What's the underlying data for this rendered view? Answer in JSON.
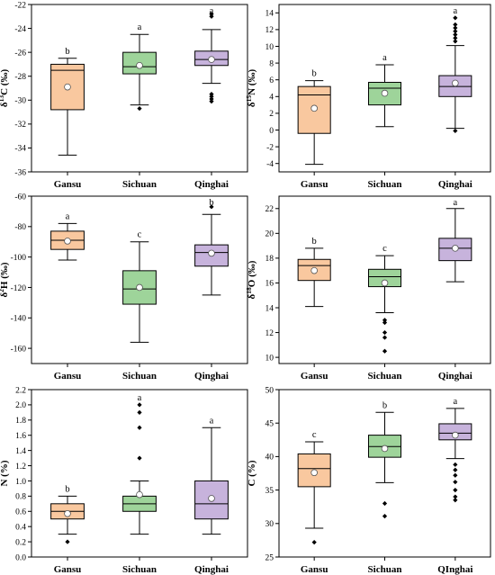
{
  "colors": {
    "Gansu": "#f9c89f",
    "Sichuan": "#9ed49a",
    "Qinghai": "#c7b3dc"
  },
  "chart_data": [
    {
      "type": "box",
      "ylabel_base": "δ",
      "ylabel_sup": "13",
      "ylabel_rest": "C (‰)",
      "ylim": [
        -36,
        -22
      ],
      "yticks": [
        -36,
        -34,
        -32,
        -30,
        -28,
        -26,
        -24,
        -22
      ],
      "categories": [
        "Gansu",
        "Sichuan",
        "Qinghai"
      ],
      "boxes": [
        {
          "q1": -30.8,
          "median": -27.5,
          "q3": -27.0,
          "whisker_low": -34.6,
          "whisker_high": -26.5,
          "mean": -28.9,
          "outliers": [],
          "letter": "b"
        },
        {
          "q1": -27.8,
          "median": -27.2,
          "q3": -26.0,
          "whisker_low": -30.4,
          "whisker_high": -24.5,
          "mean": -27.1,
          "outliers": [
            -30.7
          ],
          "letter": "a"
        },
        {
          "q1": -27.1,
          "median": -26.6,
          "q3": -25.9,
          "whisker_low": -28.6,
          "whisker_high": -24.1,
          "mean": -26.6,
          "outliers": [
            -22.8,
            -23.0,
            -29.5,
            -29.7,
            -29.9,
            -30.1
          ],
          "letter": "a"
        }
      ]
    },
    {
      "type": "box",
      "ylabel_base": "δ",
      "ylabel_sup": "15",
      "ylabel_rest": "N (‰)",
      "ylim": [
        -5,
        15
      ],
      "yticks": [
        -4,
        -2,
        0,
        2,
        4,
        6,
        8,
        10,
        12,
        14
      ],
      "categories": [
        "Gansu",
        "Sichuan",
        "Qinghai"
      ],
      "boxes": [
        {
          "q1": -0.4,
          "median": 4.2,
          "q3": 5.2,
          "whisker_low": -4.1,
          "whisker_high": 5.9,
          "mean": 2.6,
          "outliers": [],
          "letter": "b"
        },
        {
          "q1": 3.0,
          "median": 5.0,
          "q3": 5.7,
          "whisker_low": 0.4,
          "whisker_high": 7.8,
          "mean": 4.4,
          "outliers": [],
          "letter": "a"
        },
        {
          "q1": 4.0,
          "median": 5.2,
          "q3": 6.5,
          "whisker_low": 0.2,
          "whisker_high": 10.1,
          "mean": 5.6,
          "outliers": [
            -0.1,
            10.6,
            11.0,
            11.4,
            11.8,
            12.2,
            12.6,
            13.4
          ],
          "letter": "a"
        }
      ]
    },
    {
      "type": "box",
      "ylabel_base": "δ",
      "ylabel_sup": "2",
      "ylabel_rest": "H (‰)",
      "ylim": [
        -170,
        -60
      ],
      "yticks": [
        -160,
        -140,
        -120,
        -100,
        -80,
        -60
      ],
      "categories": [
        "Gansu",
        "Sichuan",
        "Qinghai"
      ],
      "boxes": [
        {
          "q1": -95,
          "median": -89,
          "q3": -83,
          "whisker_low": -102,
          "whisker_high": -78,
          "mean": -89.5,
          "outliers": [],
          "letter": "a"
        },
        {
          "q1": -131,
          "median": -121,
          "q3": -109,
          "whisker_low": -156,
          "whisker_high": -90,
          "mean": -120,
          "outliers": [],
          "letter": "c"
        },
        {
          "q1": -106,
          "median": -97,
          "q3": -92,
          "whisker_low": -125,
          "whisker_high": -72,
          "mean": -97.5,
          "outliers": [
            -67
          ],
          "letter": "b"
        }
      ]
    },
    {
      "type": "box",
      "ylabel_base": "δ",
      "ylabel_sup": "18",
      "ylabel_rest": "O (‰)",
      "ylim": [
        9.5,
        23
      ],
      "yticks": [
        10,
        12,
        14,
        16,
        18,
        20,
        22
      ],
      "categories": [
        "Gansu",
        "Sichuan",
        "Qinghai"
      ],
      "boxes": [
        {
          "q1": 16.2,
          "median": 17.4,
          "q3": 17.9,
          "whisker_low": 14.1,
          "whisker_high": 18.8,
          "mean": 17.0,
          "outliers": [],
          "letter": "b"
        },
        {
          "q1": 15.7,
          "median": 16.5,
          "q3": 17.1,
          "whisker_low": 13.6,
          "whisker_high": 18.2,
          "mean": 16.0,
          "outliers": [
            13.0,
            12.8,
            12.0,
            11.6,
            10.5
          ],
          "letter": "c"
        },
        {
          "q1": 17.8,
          "median": 18.8,
          "q3": 19.6,
          "whisker_low": 16.1,
          "whisker_high": 22.0,
          "mean": 18.8,
          "outliers": [],
          "letter": "a"
        }
      ]
    },
    {
      "type": "box",
      "ylabel_base": "N (%)",
      "ylabel_sup": "",
      "ylabel_rest": "",
      "ylim": [
        0,
        2.2
      ],
      "yticks": [
        0.0,
        0.2,
        0.4,
        0.6,
        0.8,
        1.0,
        1.2,
        1.4,
        1.6,
        1.8,
        2.0,
        2.2
      ],
      "ytick_decimals": 1,
      "categories": [
        "Gansu",
        "Sichuan",
        "Qinghai"
      ],
      "boxes": [
        {
          "q1": 0.5,
          "median": 0.6,
          "q3": 0.7,
          "whisker_low": 0.3,
          "whisker_high": 0.8,
          "mean": 0.57,
          "outliers": [
            0.2
          ],
          "letter": "b"
        },
        {
          "q1": 0.6,
          "median": 0.7,
          "q3": 0.8,
          "whisker_low": 0.3,
          "whisker_high": 1.0,
          "mean": 0.82,
          "outliers": [
            1.3,
            1.7,
            1.9,
            2.0
          ],
          "letter": "a"
        },
        {
          "q1": 0.5,
          "median": 0.7,
          "q3": 1.0,
          "whisker_low": 0.3,
          "whisker_high": 1.7,
          "mean": 0.77,
          "outliers": [],
          "letter": "a"
        }
      ]
    },
    {
      "type": "box",
      "ylabel_base": "C (%)",
      "ylabel_sup": "",
      "ylabel_rest": "",
      "ylim": [
        25,
        50
      ],
      "yticks": [
        25,
        30,
        35,
        40,
        45,
        50
      ],
      "categories": [
        "Gansu",
        "Sichuan",
        "QInghai"
      ],
      "boxes": [
        {
          "q1": 35.5,
          "median": 38.2,
          "q3": 40.4,
          "whisker_low": 29.3,
          "whisker_high": 42.2,
          "mean": 37.6,
          "outliers": [
            27.2
          ],
          "letter": "c"
        },
        {
          "q1": 39.9,
          "median": 41.5,
          "q3": 43.2,
          "whisker_low": 36.1,
          "whisker_high": 46.6,
          "mean": 41.2,
          "outliers": [
            33.0,
            31.1
          ],
          "letter": "b"
        },
        {
          "q1": 42.5,
          "median": 43.5,
          "q3": 44.9,
          "whisker_low": 39.7,
          "whisker_high": 47.2,
          "mean": 43.2,
          "outliers": [
            38.8,
            38.0,
            37.2,
            36.2,
            35.0,
            34.0,
            33.5
          ],
          "letter": "a"
        }
      ]
    }
  ]
}
